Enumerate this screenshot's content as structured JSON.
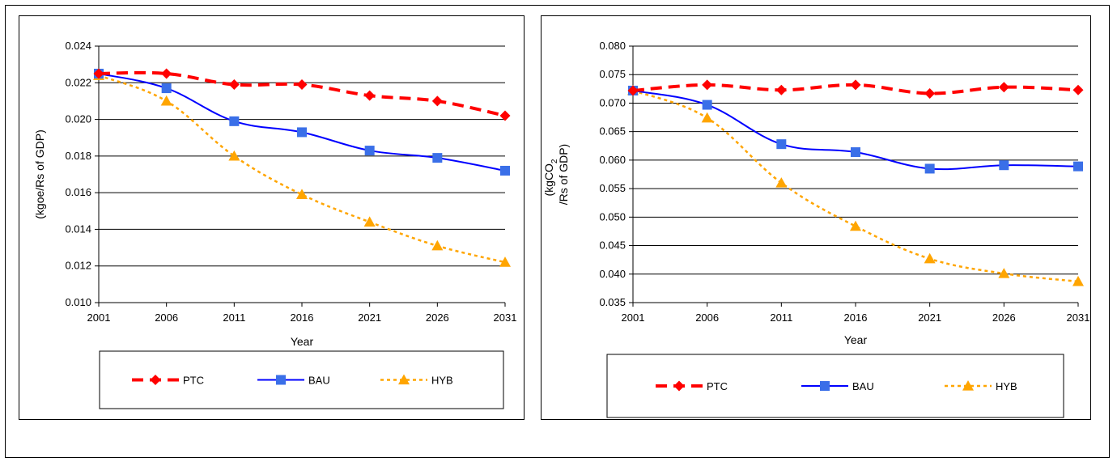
{
  "chart_data": [
    {
      "type": "line",
      "title": "",
      "xlabel": "Year",
      "ylabel": "(kgoe/Rs of GDP)",
      "x": [
        "2001",
        "2006",
        "2011",
        "2016",
        "2021",
        "2026",
        "2031"
      ],
      "ylim": [
        0.01,
        0.024
      ],
      "ystep": 0.002,
      "ydecimals": 3,
      "grid": true,
      "legend_position": "bottom",
      "series": [
        {
          "name": "PTC",
          "values": [
            0.0225,
            0.0225,
            0.0219,
            0.0219,
            0.0213,
            0.021,
            0.0202
          ],
          "color": "#ff0000",
          "marker": "diamond",
          "dash": "dashed-bold"
        },
        {
          "name": "BAU",
          "values": [
            0.0225,
            0.0217,
            0.0199,
            0.0193,
            0.0183,
            0.0179,
            0.0172
          ],
          "color": "#0000ff",
          "marker": "square",
          "dash": "solid"
        },
        {
          "name": "HYB",
          "values": [
            0.0224,
            0.021,
            0.018,
            0.0159,
            0.0144,
            0.0131,
            0.0122
          ],
          "color": "#ffa500",
          "marker": "triangle",
          "dash": "dotted"
        }
      ]
    },
    {
      "type": "line",
      "title": "",
      "xlabel": "Year",
      "ylabel_line1": "(kgCO",
      "ylabel_sub": "2",
      "ylabel_line2": "/Rs of GDP)",
      "x": [
        "2001",
        "2006",
        "2011",
        "2016",
        "2021",
        "2026",
        "2031"
      ],
      "ylim": [
        0.035,
        0.08
      ],
      "ystep": 0.005,
      "ydecimals": 3,
      "grid": true,
      "legend_position": "bottom",
      "series": [
        {
          "name": "PTC",
          "values": [
            0.0722,
            0.0732,
            0.0723,
            0.0732,
            0.0717,
            0.0728,
            0.0723
          ],
          "color": "#ff0000",
          "marker": "diamond",
          "dash": "dashed-bold"
        },
        {
          "name": "BAU",
          "values": [
            0.0722,
            0.0697,
            0.0628,
            0.0614,
            0.0585,
            0.0591,
            0.0589
          ],
          "color": "#0000ff",
          "marker": "square",
          "dash": "solid"
        },
        {
          "name": "HYB",
          "values": [
            0.0722,
            0.0674,
            0.056,
            0.0484,
            0.0427,
            0.0401,
            0.0387
          ],
          "color": "#ffa500",
          "marker": "triangle",
          "dash": "dotted"
        }
      ]
    }
  ]
}
